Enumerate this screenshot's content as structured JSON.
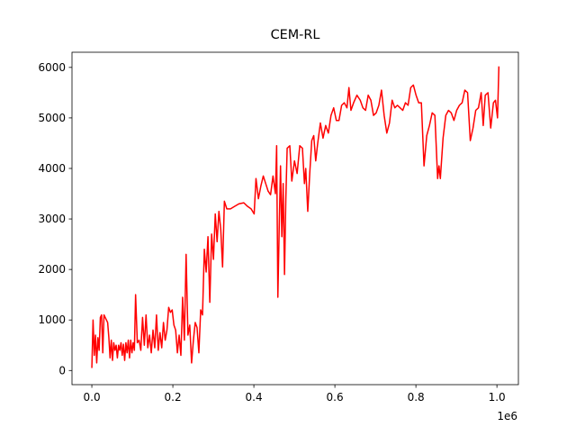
{
  "chart_data": {
    "type": "line",
    "title": "CEM-RL",
    "color": "#ff0000",
    "x": [
      0,
      3000,
      6000,
      9000,
      12000,
      15000,
      18000,
      21000,
      24000,
      27000,
      30000,
      33000,
      36000,
      39000,
      42000,
      45000,
      48000,
      51000,
      54000,
      57000,
      60000,
      63000,
      66000,
      69000,
      72000,
      75000,
      78000,
      81000,
      84000,
      87000,
      90000,
      93000,
      96000,
      99000,
      102000,
      105000,
      108000,
      112300,
      116600,
      120900,
      125200,
      129500,
      133800,
      138100,
      142400,
      146700,
      151000,
      155300,
      159600,
      163900,
      168200,
      172500,
      176800,
      181100,
      185400,
      189700,
      194000,
      198300,
      202600,
      206900,
      211200,
      215500,
      219800,
      224100,
      228400,
      232700,
      237200,
      241700,
      246200,
      250700,
      255200,
      259700,
      264200,
      268700,
      273200,
      277700,
      282200,
      286700,
      291200,
      295700,
      300200,
      304700,
      309200,
      313700,
      318200,
      322700,
      327200,
      333200,
      342200,
      352700,
      363200,
      375200,
      384200,
      393200,
      400700,
      405200,
      411200,
      417200,
      423200,
      429200,
      435200,
      441200,
      447200,
      453200,
      456200,
      459200,
      462480,
      465760,
      469040,
      472320,
      475600,
      478880,
      482160,
      488720,
      493640,
      500200,
      506760,
      513320,
      519880,
      524800,
      528080,
      533000,
      537920,
      542840,
      547760,
      552680,
      557600,
      564160,
      570720,
      577280,
      583840,
      590400,
      596960,
      603520,
      610080,
      616640,
      623200,
      629760,
      634680,
      639600,
      646160,
      654360,
      662560,
      669120,
      675680,
      682240,
      688800,
      695360,
      701920,
      708480,
      715040,
      721600,
      728160,
      734720,
      741280,
      747840,
      754400,
      760960,
      767520,
      774080,
      780640,
      787200,
      793760,
      800320,
      806880,
      813440,
      820000,
      826720,
      833440,
      840160,
      846880,
      853600,
      856960,
      860320,
      867040,
      873760,
      880480,
      887200,
      893920,
      900640,
      907360,
      914080,
      920800,
      927520,
      934240,
      940960,
      947680,
      954400,
      961120,
      966160,
      971200,
      977920,
      984640,
      991360,
      996400,
      1001440,
      1004800
    ],
    "values": [
      50,
      1000,
      300,
      700,
      150,
      650,
      400,
      1050,
      1100,
      350,
      1100,
      1050,
      1000,
      950,
      650,
      250,
      600,
      200,
      550,
      400,
      500,
      250,
      500,
      400,
      550,
      300,
      520,
      200,
      550,
      350,
      600,
      250,
      600,
      350,
      550,
      400,
      1500,
      550,
      600,
      400,
      1050,
      500,
      1100,
      450,
      700,
      350,
      800,
      450,
      1100,
      400,
      750,
      450,
      950,
      600,
      800,
      1250,
      1150,
      1200,
      900,
      800,
      350,
      700,
      300,
      1450,
      600,
      2300,
      700,
      900,
      150,
      600,
      950,
      850,
      350,
      1200,
      1100,
      2400,
      1950,
      2650,
      1350,
      2700,
      2200,
      3100,
      2550,
      3150,
      2800,
      2050,
      3350,
      3200,
      3200,
      3250,
      3300,
      3320,
      3250,
      3200,
      3100,
      3800,
      3400,
      3650,
      3850,
      3700,
      3550,
      3480,
      3850,
      3500,
      4450,
      1450,
      2800,
      4050,
      2650,
      3700,
      1900,
      3400,
      4400,
      4450,
      3750,
      4150,
      3900,
      4450,
      4400,
      3700,
      4000,
      3150,
      3900,
      4550,
      4650,
      4150,
      4500,
      4900,
      4600,
      4850,
      4700,
      5050,
      5200,
      4950,
      4950,
      5250,
      5300,
      5200,
      5600,
      5150,
      5300,
      5450,
      5350,
      5200,
      5150,
      5450,
      5350,
      5050,
      5100,
      5250,
      5550,
      5050,
      4700,
      4900,
      5350,
      5200,
      5250,
      5200,
      5150,
      5300,
      5250,
      5600,
      5650,
      5450,
      5300,
      5300,
      4050,
      4650,
      4850,
      5100,
      5050,
      3800,
      4050,
      3800,
      4600,
      5050,
      5150,
      5100,
      4950,
      5150,
      5250,
      5300,
      5550,
      5500,
      4550,
      4800,
      5150,
      5200,
      5500,
      4850,
      5450,
      5500,
      4800,
      5300,
      5350,
      5000,
      6020
    ],
    "xlim": [
      -49000,
      1053000
    ],
    "xticks": [
      {
        "value": 0,
        "label": "0.0"
      },
      {
        "value": 200000,
        "label": "0.2"
      },
      {
        "value": 400000,
        "label": "0.4"
      },
      {
        "value": 600000,
        "label": "0.6"
      },
      {
        "value": 800000,
        "label": "0.8"
      },
      {
        "value": 1000000,
        "label": "1.0"
      }
    ],
    "x_offset_label": "1e6",
    "ylim": [
      -280,
      6300
    ],
    "yticks": [
      0,
      1000,
      2000,
      3000,
      4000,
      5000,
      6000
    ]
  }
}
